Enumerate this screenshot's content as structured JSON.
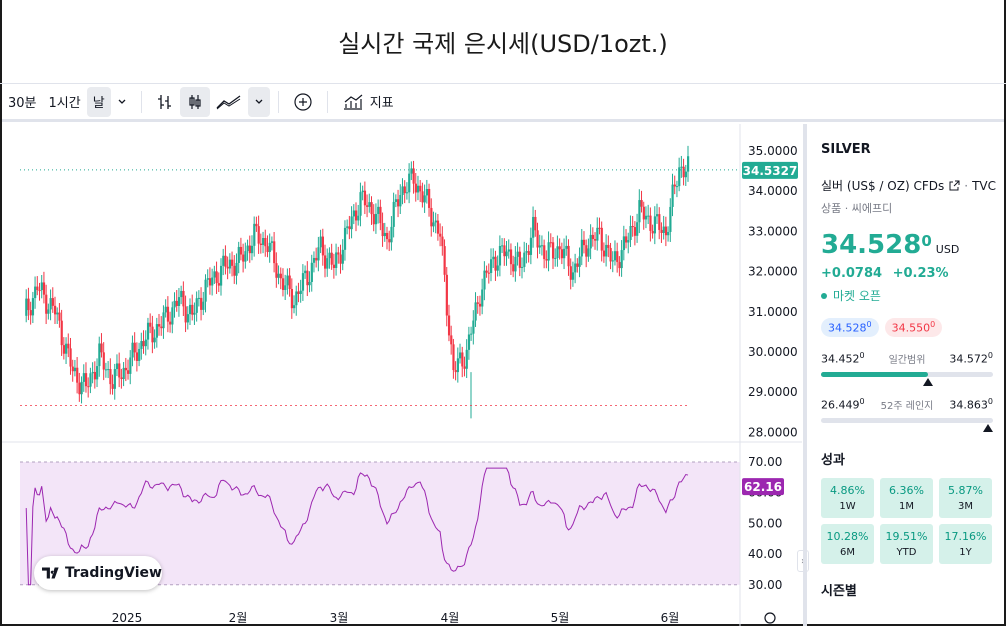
{
  "title": "실시간 국제 은시세(USD/1ozt.)",
  "toolbar": {
    "interval_30m": "30분",
    "interval_1h": "1시간",
    "interval_day": "날",
    "indicators": "지표"
  },
  "price_axis": [
    "35.0000",
    "34.0000",
    "33.0000",
    "32.0000",
    "31.0000",
    "30.0000",
    "29.0000",
    "28.0000"
  ],
  "rsi_axis": [
    "70.00",
    "60.00",
    "50.00",
    "40.00",
    "30.00"
  ],
  "time_axis": [
    "2025",
    "2월",
    "3월",
    "4월",
    "5월",
    "6월"
  ],
  "last_price_label": "34.5327",
  "rsi_label": "62.16",
  "logo_text": "TradingView",
  "sidebar": {
    "symbol": "SILVER",
    "description": "실버 (US$ / OZ) CFDs",
    "exchange": "TVC",
    "category": "상품 · 씨에프디",
    "price_main": "34.528",
    "price_sup": "0",
    "currency": "USD",
    "change": "+0.0784",
    "change_pct": "+0.23%",
    "market_status": "마켓 오픈",
    "bid": "34.528",
    "bid_sup": "0",
    "ask": "34.550",
    "ask_sup": "0",
    "day_low": "34.452",
    "day_low_sup": "0",
    "day_range_label": "일간범위",
    "day_high": "34.572",
    "day_high_sup": "0",
    "day_fill": 0.62,
    "wk_low": "26.449",
    "wk_low_sup": "0",
    "wk_range_label": "52주 레인지",
    "wk_high": "34.863",
    "wk_high_sup": "0",
    "wk_fill": 0.97,
    "performance_label": "성과",
    "performance": [
      {
        "value": "4.86%",
        "label": "1W"
      },
      {
        "value": "6.36%",
        "label": "1M"
      },
      {
        "value": "5.87%",
        "label": "3M"
      },
      {
        "value": "10.28%",
        "label": "6M"
      },
      {
        "value": "19.51%",
        "label": "YTD"
      },
      {
        "value": "17.16%",
        "label": "1Y"
      }
    ],
    "seasonal_label": "시즌별"
  },
  "colors": {
    "up": "#22ab94",
    "down": "#f23645",
    "rsi": "#9c27b0",
    "rsi_band": "#f3e5f8"
  }
}
